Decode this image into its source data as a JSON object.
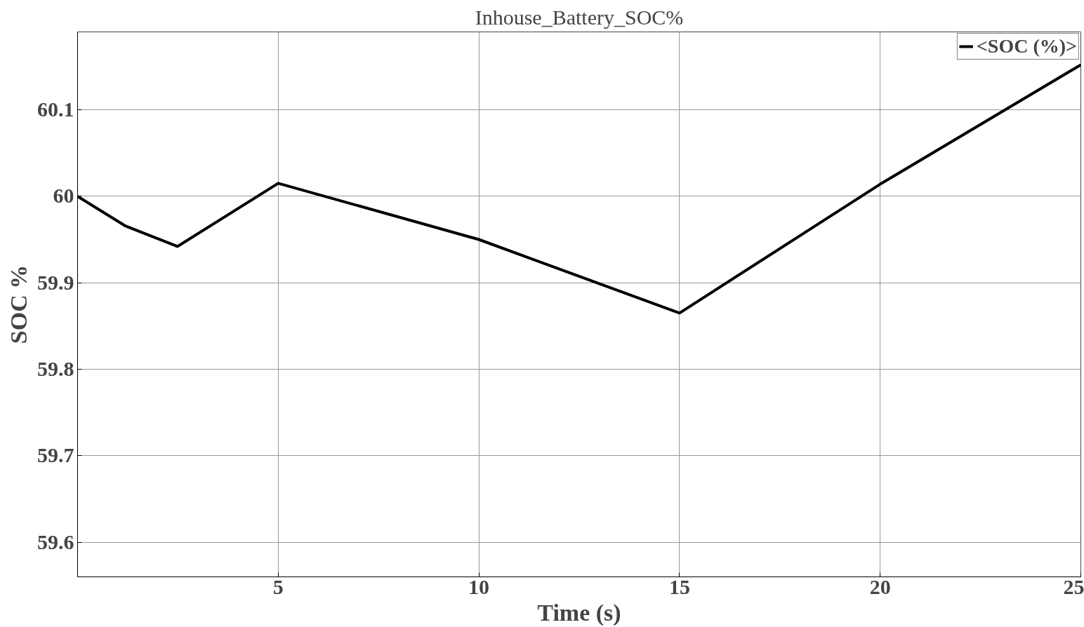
{
  "chart_data": {
    "type": "line",
    "title": "Inhouse_Battery_SOC%",
    "xlabel": "Time (s)",
    "ylabel": "SOC %",
    "x": [
      0,
      1.18,
      2.49,
      5,
      10,
      15,
      20,
      25
    ],
    "series": [
      {
        "name": "<SOC (%)>",
        "color": "#000000",
        "values": [
          60.0,
          59.966,
          59.942,
          60.015,
          59.95,
          59.865,
          60.014,
          60.152
        ]
      }
    ],
    "xlim": [
      0,
      25
    ],
    "ylim": [
      59.56,
      60.19
    ],
    "xticks": [
      5,
      10,
      15,
      20,
      25
    ],
    "yticks": [
      59.6,
      59.7,
      59.8,
      59.9,
      60,
      60.1
    ],
    "grid": true,
    "legend": "top right",
    "marker": "none",
    "line_style": "solid"
  }
}
